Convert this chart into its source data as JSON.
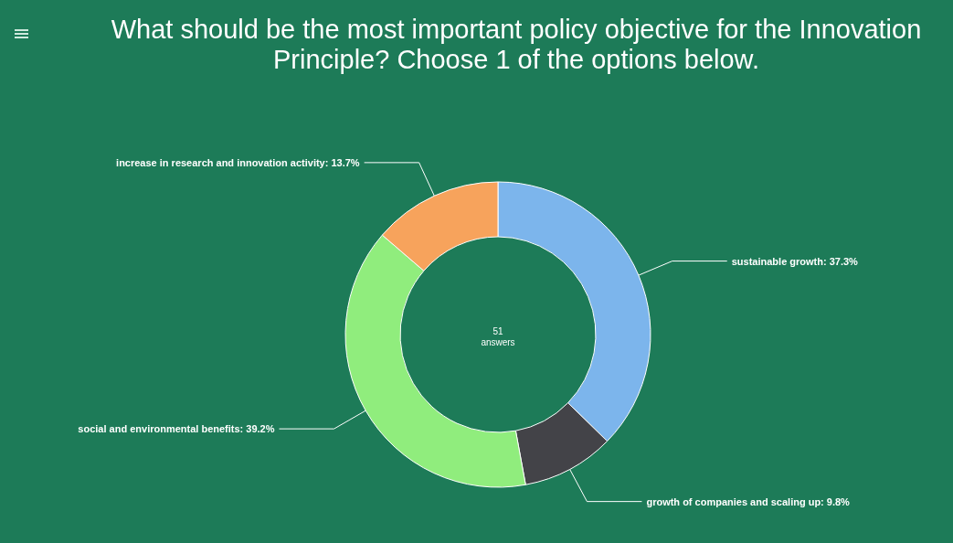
{
  "chart_data": {
    "type": "donut",
    "title": "What should be the most important policy objective for the Innovation Principle? Choose 1 of the options below.",
    "categories": [
      "sustainable growth",
      "growth of companies and scaling up",
      "social and environmental benefits",
      "increase in research and innovation activity"
    ],
    "values": [
      37.3,
      9.8,
      39.2,
      13.7
    ],
    "value_labels": [
      ": 37.3%",
      ": 9.8%",
      ": 39.2%",
      ": 13.7%"
    ],
    "colors": [
      "#7cb5ec",
      "#434348",
      "#90ed7d",
      "#f7a35c"
    ],
    "annotations": [
      "51\nanswers"
    ]
  }
}
